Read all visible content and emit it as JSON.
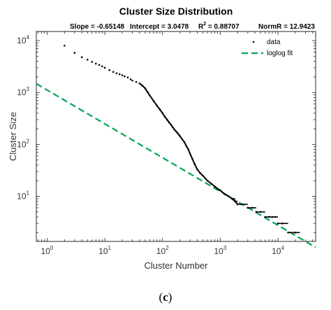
{
  "figure": {
    "caption_open": "(",
    "caption_letter": "c",
    "caption_close": ")"
  },
  "chart_data": {
    "type": "scatter",
    "title": "Cluster Size Distribution",
    "subtitle": {
      "slope": "Slope = -0.65148",
      "intercept": "Intercept = 3.0478",
      "r2_prefix": "R",
      "r2_exp": "2",
      "r2_value": " = 0.88707",
      "normr": "NormR = 12.9423"
    },
    "xlabel": "Cluster Number",
    "ylabel": "Cluster Size",
    "xscale": "log",
    "yscale": "log",
    "xlim": [
      0.65,
      45000
    ],
    "ylim": [
      1.35,
      15000
    ],
    "x_ticks": [
      {
        "value": 1,
        "base": "10",
        "exp": "0"
      },
      {
        "value": 10,
        "base": "10",
        "exp": "1"
      },
      {
        "value": 100,
        "base": "10",
        "exp": "2"
      },
      {
        "value": 1000,
        "base": "10",
        "exp": "3"
      },
      {
        "value": 10000,
        "base": "10",
        "exp": "4"
      }
    ],
    "y_ticks": [
      {
        "value": 10,
        "base": "10",
        "exp": "1"
      },
      {
        "value": 100,
        "base": "10",
        "exp": "2"
      },
      {
        "value": 1000,
        "base": "10",
        "exp": "3"
      },
      {
        "value": 10000,
        "base": "10",
        "exp": "4"
      }
    ],
    "grid": false,
    "legend": {
      "position": "top-right",
      "entries": [
        {
          "label": "data",
          "style": "marker"
        },
        {
          "label": "loglog fit",
          "style": "dashed-line"
        }
      ]
    },
    "series": [
      {
        "name": "data",
        "color": "#000000",
        "marker": "point",
        "x": [
          2,
          3,
          4,
          5,
          6,
          7,
          8,
          9,
          10,
          12,
          14,
          16,
          18,
          20,
          22,
          25,
          28,
          30,
          35,
          40,
          45,
          50,
          55,
          60,
          70,
          80,
          90,
          100,
          110,
          120,
          130,
          140,
          150,
          160,
          170,
          180,
          190,
          200,
          220,
          240,
          260,
          280,
          300,
          330,
          360,
          400,
          450,
          500,
          600,
          700,
          800,
          900,
          1000,
          1200,
          1400,
          1600,
          1800,
          2000,
          2400,
          3000,
          3600,
          4200,
          5000,
          6000,
          7000,
          8000,
          9000,
          10000,
          12000,
          15000,
          20000
        ],
        "y": [
          8000,
          5800,
          4800,
          4300,
          3900,
          3600,
          3400,
          3200,
          3000,
          2700,
          2500,
          2350,
          2250,
          2150,
          2050,
          1950,
          1800,
          1700,
          1600,
          1500,
          1350,
          1200,
          1020,
          880,
          690,
          560,
          470,
          400,
          340,
          300,
          265,
          240,
          215,
          195,
          180,
          168,
          155,
          145,
          125,
          110,
          92,
          80,
          66,
          52,
          42,
          33,
          28,
          25,
          20,
          17.5,
          15.5,
          14,
          13,
          11,
          10,
          9,
          8,
          7,
          7,
          6,
          6,
          5,
          5,
          4,
          4,
          4,
          4,
          3,
          3,
          2,
          2
        ]
      },
      {
        "name": "loglog fit",
        "color": "#00a651",
        "style": "dashed",
        "slope": -0.65148,
        "intercept": 3.0478
      }
    ]
  }
}
